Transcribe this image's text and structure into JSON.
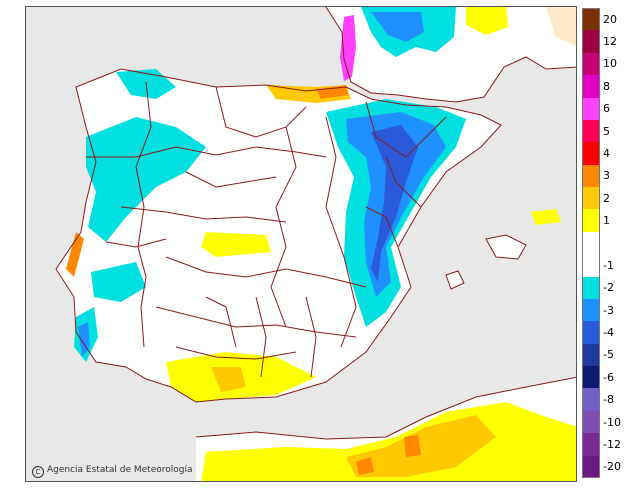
{
  "credit": {
    "mark": "C",
    "text": "Agencia Estatal de Meteorología"
  },
  "legend": {
    "items": [
      {
        "label": "20",
        "color": "#7a3300"
      },
      {
        "label": "12",
        "color": "#a00040"
      },
      {
        "label": "10",
        "color": "#c8007a"
      },
      {
        "label": "8",
        "color": "#e000c8"
      },
      {
        "label": "6",
        "color": "#ff40ff"
      },
      {
        "label": "5",
        "color": "#ff0055"
      },
      {
        "label": "4",
        "color": "#ff0000"
      },
      {
        "label": "3",
        "color": "#ff8800"
      },
      {
        "label": "2",
        "color": "#ffc800"
      },
      {
        "label": "1",
        "color": "#ffff00"
      },
      {
        "label": "",
        "color": "#ffffff"
      },
      {
        "label": "-1",
        "color": "#ffffff"
      },
      {
        "label": "-2",
        "color": "#00e0e0"
      },
      {
        "label": "-3",
        "color": "#1e90ff"
      },
      {
        "label": "-4",
        "color": "#2a5ad8"
      },
      {
        "label": "-5",
        "color": "#1c3aa0"
      },
      {
        "label": "-6",
        "color": "#101a70"
      },
      {
        "label": "-8",
        "color": "#7060c8"
      },
      {
        "label": "-10",
        "color": "#8050b0"
      },
      {
        "label": "-12",
        "color": "#7a2a90"
      },
      {
        "label": "-20",
        "color": "#6a1a80"
      }
    ]
  },
  "colors": {
    "sea": "#e8e8e8",
    "land": "#ffffff",
    "border": "#8b1a1a",
    "warm1": "#ffff00",
    "warm2": "#ffc800",
    "warm3": "#ff8800",
    "cold1": "#00e0e0",
    "cold2": "#1e90ff",
    "cold3": "#2a5ad8"
  }
}
